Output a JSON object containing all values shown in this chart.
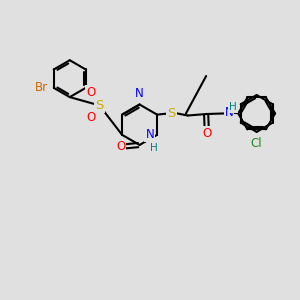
{
  "bg_color": "#e0e0e0",
  "bond_color": "#000000",
  "bond_width": 1.5,
  "atom_colors": {
    "Br": "#cc6600",
    "S": "#ccaa00",
    "O": "#ff0000",
    "N": "#0000ff",
    "H": "#008080",
    "Cl": "#228822",
    "C": "#000000"
  },
  "font_size": 8.5
}
